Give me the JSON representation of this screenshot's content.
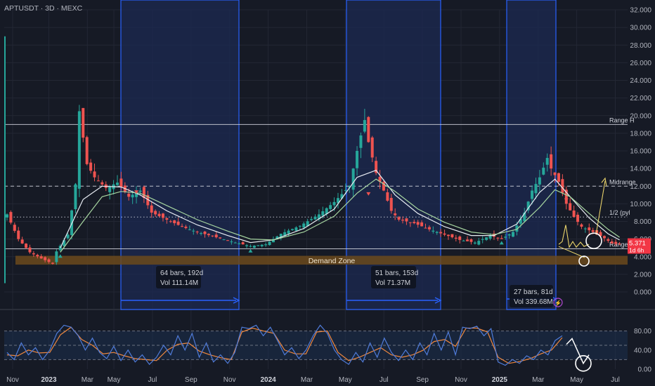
{
  "header": {
    "symbol_line": "APTUSDT · 3D · MEXC"
  },
  "colors": {
    "bg": "#161a25",
    "grid": "#232734",
    "axis_text": "#b2b5be",
    "up": "#26a69a",
    "down": "#ef5350",
    "box_fill": "#1c2a52",
    "box_edge": "#2962ff",
    "demand_fill": "#6b4a1c",
    "ema_fast": "#e8ecf3",
    "ema_slow": "#a6d5a0",
    "stoch_k": "#4f7bd8",
    "stoch_d": "#f0883e",
    "price_tag": "#f23645"
  },
  "chart_data": [
    {
      "type": "candlestick",
      "y_ticks": [
        "32.000",
        "30.000",
        "28.000",
        "26.000",
        "24.000",
        "22.000",
        "20.000",
        "18.000",
        "16.000",
        "14.000",
        "12.000",
        "10.000",
        "8.000",
        "6.000",
        "4.000",
        "2.000",
        "0.000"
      ],
      "x_ticks": [
        "Nov",
        "2023",
        "Mar",
        "May",
        "Jul",
        "Sep",
        "Nov",
        "2024",
        "Mar",
        "May",
        "Jul",
        "Sep",
        "Nov",
        "2025",
        "Mar",
        "May",
        "Jul"
      ],
      "ylim": [
        0,
        32
      ],
      "price_path": [
        [
          0,
          8.8
        ],
        [
          3,
          6.0
        ],
        [
          6,
          4.5
        ],
        [
          9,
          3.8
        ],
        [
          12,
          3.2
        ],
        [
          13,
          4.6
        ],
        [
          16,
          6.5
        ],
        [
          18,
          12.0
        ],
        [
          19,
          20.5
        ],
        [
          21,
          14.5
        ],
        [
          23,
          13.0
        ],
        [
          26,
          11.8
        ],
        [
          29,
          12.4
        ],
        [
          32,
          10.8
        ],
        [
          35,
          11.5
        ],
        [
          38,
          9.0
        ],
        [
          42,
          8.2
        ],
        [
          46,
          7.4
        ],
        [
          50,
          6.8
        ],
        [
          55,
          6.2
        ],
        [
          60,
          5.6
        ],
        [
          64,
          5.2
        ],
        [
          68,
          5.4
        ],
        [
          72,
          6.6
        ],
        [
          77,
          7.5
        ],
        [
          82,
          8.8
        ],
        [
          86,
          10.2
        ],
        [
          90,
          12.0
        ],
        [
          92,
          16.0
        ],
        [
          94,
          19.5
        ],
        [
          95,
          17.0
        ],
        [
          97,
          13.5
        ],
        [
          99,
          11.5
        ],
        [
          101,
          9.2
        ],
        [
          103,
          8.2
        ],
        [
          107,
          7.8
        ],
        [
          111,
          7.1
        ],
        [
          115,
          6.5
        ],
        [
          119,
          5.9
        ],
        [
          123,
          5.6
        ],
        [
          127,
          6.4
        ],
        [
          130,
          6.0
        ],
        [
          133,
          6.8
        ],
        [
          136,
          9.0
        ],
        [
          138,
          11.5
        ],
        [
          140,
          13.0
        ],
        [
          142,
          15.2
        ],
        [
          143,
          14.0
        ],
        [
          145,
          12.5
        ],
        [
          147,
          10.0
        ],
        [
          149,
          8.5
        ],
        [
          151,
          7.4
        ],
        [
          154,
          6.8
        ],
        [
          157,
          6.1
        ],
        [
          159,
          5.5
        ],
        [
          161,
          5.4
        ]
      ],
      "ema_fast_path": [
        [
          14,
          5.0
        ],
        [
          20,
          10.5
        ],
        [
          25,
          12.0
        ],
        [
          30,
          11.9
        ],
        [
          35,
          11.0
        ],
        [
          42,
          9.2
        ],
        [
          50,
          7.6
        ],
        [
          58,
          6.4
        ],
        [
          64,
          5.6
        ],
        [
          70,
          5.9
        ],
        [
          78,
          7.2
        ],
        [
          86,
          9.4
        ],
        [
          92,
          13.0
        ],
        [
          97,
          13.8
        ],
        [
          102,
          11.0
        ],
        [
          108,
          8.9
        ],
        [
          115,
          7.4
        ],
        [
          122,
          6.4
        ],
        [
          128,
          6.4
        ],
        [
          134,
          7.7
        ],
        [
          140,
          11.3
        ],
        [
          144,
          12.8
        ],
        [
          148,
          10.8
        ],
        [
          153,
          8.4
        ],
        [
          158,
          6.6
        ],
        [
          161,
          5.9
        ]
      ],
      "ema_slow_path": [
        [
          14,
          4.5
        ],
        [
          20,
          8.0
        ],
        [
          25,
          10.8
        ],
        [
          30,
          11.4
        ],
        [
          35,
          11.2
        ],
        [
          42,
          9.8
        ],
        [
          50,
          8.2
        ],
        [
          58,
          6.9
        ],
        [
          64,
          6.0
        ],
        [
          70,
          5.9
        ],
        [
          78,
          6.8
        ],
        [
          86,
          8.6
        ],
        [
          92,
          11.2
        ],
        [
          97,
          12.8
        ],
        [
          102,
          11.4
        ],
        [
          108,
          9.4
        ],
        [
          115,
          7.9
        ],
        [
          122,
          6.8
        ],
        [
          128,
          6.5
        ],
        [
          134,
          7.1
        ],
        [
          140,
          9.6
        ],
        [
          144,
          11.6
        ],
        [
          148,
          10.8
        ],
        [
          153,
          8.9
        ],
        [
          158,
          7.1
        ],
        [
          161,
          6.2
        ]
      ],
      "levels": [
        {
          "name": "Range H",
          "label": "Range H",
          "value": 19.0,
          "style": "solid"
        },
        {
          "name": "Midrange",
          "label": "Midrange",
          "value": 12.0,
          "style": "dashed"
        },
        {
          "name": "1/2",
          "label": "1/2 (pyl",
          "value": 8.5,
          "style": "dotted"
        },
        {
          "name": "Range L",
          "label": "Range L",
          "value": 4.9,
          "style": "solid"
        }
      ],
      "demand_zone": {
        "label": "Demand Zone",
        "low": 3.1,
        "high": 4.1
      },
      "range_boxes": [
        {
          "bars": "64 bars, 192d",
          "vol": "Vol 111.14M"
        },
        {
          "bars": "51 bars, 153d",
          "vol": "Vol 71.37M"
        },
        {
          "bars": "27 bars, 81d",
          "vol": "Vol 339.68M"
        }
      ],
      "price_tag": {
        "price": "5.371",
        "countdown": "1d 6h"
      }
    },
    {
      "type": "line",
      "name": "stoch",
      "y_ticks": [
        "80.00",
        "40.00",
        "0.00"
      ],
      "ylim": [
        0,
        100
      ],
      "bands": [
        80,
        50,
        20
      ],
      "k_path": [
        [
          0,
          35
        ],
        [
          2,
          20
        ],
        [
          4,
          55
        ],
        [
          6,
          30
        ],
        [
          8,
          45
        ],
        [
          10,
          20
        ],
        [
          12,
          40
        ],
        [
          14,
          75
        ],
        [
          16,
          92
        ],
        [
          18,
          88
        ],
        [
          20,
          70
        ],
        [
          22,
          40
        ],
        [
          24,
          65
        ],
        [
          26,
          35
        ],
        [
          28,
          22
        ],
        [
          30,
          48
        ],
        [
          32,
          18
        ],
        [
          34,
          40
        ],
        [
          36,
          15
        ],
        [
          38,
          30
        ],
        [
          40,
          10
        ],
        [
          42,
          25
        ],
        [
          44,
          50
        ],
        [
          46,
          30
        ],
        [
          48,
          70
        ],
        [
          50,
          40
        ],
        [
          52,
          75
        ],
        [
          54,
          25
        ],
        [
          56,
          55
        ],
        [
          58,
          15
        ],
        [
          60,
          30
        ],
        [
          62,
          12
        ],
        [
          64,
          35
        ],
        [
          66,
          88
        ],
        [
          68,
          85
        ],
        [
          70,
          92
        ],
        [
          72,
          70
        ],
        [
          74,
          88
        ],
        [
          76,
          60
        ],
        [
          78,
          30
        ],
        [
          80,
          45
        ],
        [
          82,
          22
        ],
        [
          84,
          40
        ],
        [
          86,
          70
        ],
        [
          88,
          92
        ],
        [
          90,
          75
        ],
        [
          92,
          40
        ],
        [
          94,
          20
        ],
        [
          96,
          10
        ],
        [
          98,
          35
        ],
        [
          100,
          15
        ],
        [
          102,
          55
        ],
        [
          104,
          25
        ],
        [
          106,
          65
        ],
        [
          108,
          35
        ],
        [
          110,
          18
        ],
        [
          112,
          40
        ],
        [
          114,
          20
        ],
        [
          116,
          55
        ],
        [
          118,
          30
        ],
        [
          120,
          75
        ],
        [
          122,
          40
        ],
        [
          124,
          78
        ],
        [
          126,
          30
        ],
        [
          128,
          88
        ],
        [
          130,
          85
        ],
        [
          132,
          90
        ],
        [
          134,
          70
        ],
        [
          136,
          85
        ],
        [
          138,
          15
        ],
        [
          140,
          8
        ],
        [
          142,
          20
        ],
        [
          144,
          12
        ],
        [
          146,
          28
        ],
        [
          148,
          20
        ],
        [
          150,
          40
        ],
        [
          152,
          30
        ],
        [
          154,
          60
        ],
        [
          156,
          70
        ]
      ],
      "d_path": [
        [
          0,
          30
        ],
        [
          3,
          28
        ],
        [
          6,
          40
        ],
        [
          9,
          34
        ],
        [
          12,
          35
        ],
        [
          15,
          72
        ],
        [
          18,
          88
        ],
        [
          21,
          62
        ],
        [
          24,
          50
        ],
        [
          27,
          32
        ],
        [
          30,
          35
        ],
        [
          33,
          28
        ],
        [
          36,
          22
        ],
        [
          39,
          20
        ],
        [
          42,
          18
        ],
        [
          45,
          40
        ],
        [
          48,
          52
        ],
        [
          51,
          55
        ],
        [
          54,
          38
        ],
        [
          57,
          30
        ],
        [
          60,
          24
        ],
        [
          63,
          20
        ],
        [
          66,
          78
        ],
        [
          69,
          86
        ],
        [
          72,
          80
        ],
        [
          75,
          75
        ],
        [
          78,
          40
        ],
        [
          81,
          32
        ],
        [
          84,
          32
        ],
        [
          87,
          78
        ],
        [
          90,
          80
        ],
        [
          93,
          35
        ],
        [
          96,
          18
        ],
        [
          99,
          25
        ],
        [
          102,
          35
        ],
        [
          105,
          45
        ],
        [
          108,
          30
        ],
        [
          111,
          25
        ],
        [
          114,
          30
        ],
        [
          117,
          40
        ],
        [
          120,
          58
        ],
        [
          123,
          62
        ],
        [
          126,
          48
        ],
        [
          129,
          86
        ],
        [
          132,
          86
        ],
        [
          135,
          78
        ],
        [
          138,
          25
        ],
        [
          141,
          12
        ],
        [
          144,
          16
        ],
        [
          147,
          22
        ],
        [
          150,
          32
        ],
        [
          153,
          40
        ],
        [
          156,
          66
        ]
      ]
    }
  ]
}
